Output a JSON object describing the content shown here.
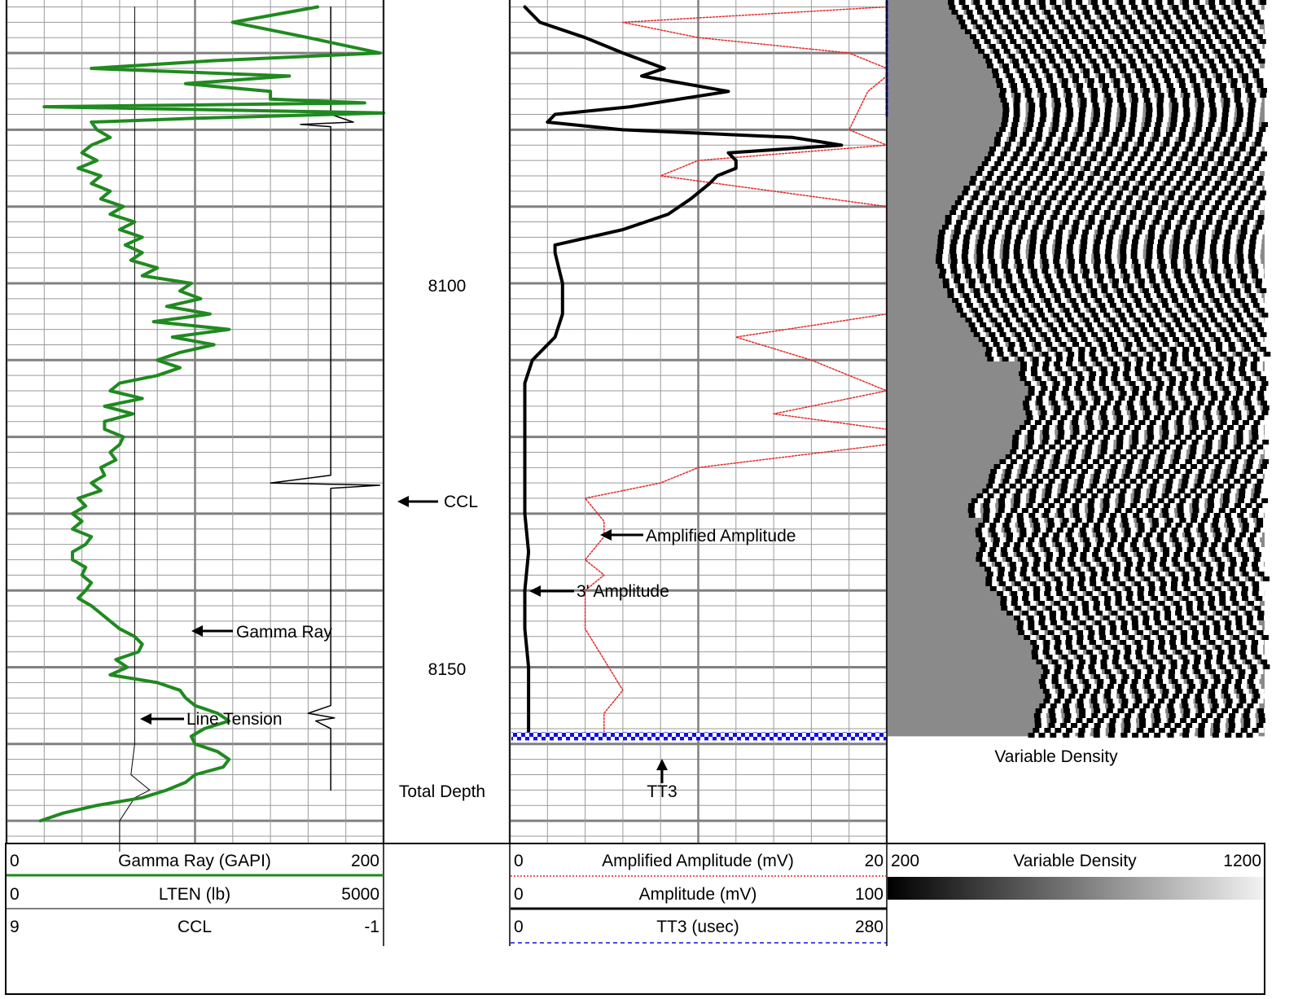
{
  "chart_data": {
    "type": "line",
    "depth_labels": [
      {
        "depth": 8100,
        "label": "8100"
      },
      {
        "depth": 8150,
        "label": "8150"
      },
      {
        "depth": 8165.8,
        "label": "Total Depth"
      }
    ],
    "depth_axis": {
      "min": 8064,
      "max": 8174,
      "unit": "ft",
      "major_every": 10,
      "minor_every": 2
    },
    "annotations": {
      "ccl": "CCL",
      "gamma_ray": "Gamma Ray",
      "line_tension": "Line Tension",
      "amplified_amplitude": "Amplified Amplitude",
      "amplitude_3ft": "3' Amplitude",
      "tt3": "TT3",
      "variable_density": "Variable Density"
    },
    "tracks": [
      {
        "name": "track1",
        "curves": [
          {
            "key": "gamma_ray",
            "label": "Gamma Ray (GAPI)",
            "min": "0",
            "max": "200",
            "color": "#1f8a1f",
            "points": [
              [
                8064,
                165
              ],
              [
                8066,
                120
              ],
              [
                8068,
                160
              ],
              [
                8070,
                198
              ],
              [
                8071,
                110
              ],
              [
                8072,
                45
              ],
              [
                8073,
                150
              ],
              [
                8074,
                95
              ],
              [
                8075,
                140
              ],
              [
                8076,
                140
              ],
              [
                8076.5,
                190
              ],
              [
                8077,
                20
              ],
              [
                8077.8,
                200
              ],
              [
                8078.5,
                100
              ],
              [
                8079,
                45
              ],
              [
                8080,
                48
              ],
              [
                8081,
                55
              ],
              [
                8082,
                45
              ],
              [
                8083,
                40
              ],
              [
                8084,
                48
              ],
              [
                8085,
                38
              ],
              [
                8086,
                50
              ],
              [
                8087,
                45
              ],
              [
                8088,
                55
              ],
              [
                8089,
                50
              ],
              [
                8090,
                62
              ],
              [
                8091,
                55
              ],
              [
                8092,
                68
              ],
              [
                8093,
                60
              ],
              [
                8094,
                72
              ],
              [
                8095,
                63
              ],
              [
                8096,
                72
              ],
              [
                8097,
                66
              ],
              [
                8098,
                80
              ],
              [
                8099,
                72
              ],
              [
                8100,
                98
              ],
              [
                8101,
                92
              ],
              [
                8102,
                103
              ],
              [
                8103,
                85
              ],
              [
                8104,
                108
              ],
              [
                8105,
                78
              ],
              [
                8106,
                118
              ],
              [
                8107,
                88
              ],
              [
                8108,
                110
              ],
              [
                8109,
                92
              ],
              [
                8110,
                80
              ],
              [
                8111,
                92
              ],
              [
                8112,
                80
              ],
              [
                8113,
                60
              ],
              [
                8114,
                55
              ],
              [
                8115,
                72
              ],
              [
                8116,
                52
              ],
              [
                8117,
                67
              ],
              [
                8118,
                52
              ],
              [
                8119,
                52
              ],
              [
                8120,
                62
              ],
              [
                8121,
                60
              ],
              [
                8122,
                55
              ],
              [
                8123,
                58
              ],
              [
                8124,
                50
              ],
              [
                8125,
                52
              ],
              [
                8126,
                45
              ],
              [
                8127,
                50
              ],
              [
                8128,
                38
              ],
              [
                8129,
                42
              ],
              [
                8130,
                35
              ],
              [
                8131,
                40
              ],
              [
                8132,
                35
              ],
              [
                8133,
                45
              ],
              [
                8134,
                42
              ],
              [
                8135,
                35
              ],
              [
                8136,
                35
              ],
              [
                8137,
                42
              ],
              [
                8138,
                40
              ],
              [
                8139,
                45
              ],
              [
                8140,
                42
              ],
              [
                8141,
                38
              ],
              [
                8142,
                45
              ],
              [
                8143,
                50
              ],
              [
                8144,
                55
              ],
              [
                8145,
                60
              ],
              [
                8146,
                68
              ],
              [
                8147,
                72
              ],
              [
                8148,
                70
              ],
              [
                8149,
                58
              ],
              [
                8150,
                64
              ],
              [
                8151,
                55
              ],
              [
                8152,
                80
              ],
              [
                8153,
                92
              ],
              [
                8154,
                95
              ],
              [
                8155,
                100
              ],
              [
                8156,
                112
              ],
              [
                8157,
                118
              ],
              [
                8158,
                105
              ],
              [
                8159,
                98
              ],
              [
                8160,
                100
              ],
              [
                8161,
                112
              ],
              [
                8162,
                118
              ],
              [
                8163,
                115
              ],
              [
                8164,
                100
              ],
              [
                8165,
                95
              ],
              [
                8166,
                85
              ],
              [
                8167,
                72
              ],
              [
                8168,
                48
              ],
              [
                8169,
                30
              ],
              [
                8170,
                18
              ]
            ]
          },
          {
            "key": "lten",
            "label": "LTEN (lb)",
            "min": "0",
            "max": "5000",
            "color": "#000000",
            "points": [
              [
                8064,
                1700
              ],
              [
                8080,
                1700
              ],
              [
                8100,
                1700
              ],
              [
                8120,
                1700
              ],
              [
                8140,
                1700
              ],
              [
                8160,
                1700
              ],
              [
                8164,
                1650
              ],
              [
                8166,
                1900
              ],
              [
                8167,
                1700
              ],
              [
                8170,
                1500
              ],
              [
                8174,
                1500
              ]
            ]
          },
          {
            "key": "ccl",
            "label": "CCL",
            "min": "9",
            "max": "-1",
            "color": "#000000",
            "points": [
              [
                8064,
                0.4
              ],
              [
                8078,
                0.4
              ],
              [
                8079,
                -0.2
              ],
              [
                8079.3,
                1.2
              ],
              [
                8079.6,
                0.4
              ],
              [
                8080,
                0.4
              ],
              [
                8125,
                0.4
              ],
              [
                8126,
                2.0
              ],
              [
                8126.3,
                -0.9
              ],
              [
                8126.7,
                0.4
              ],
              [
                8155,
                0.4
              ],
              [
                8156,
                1.0
              ],
              [
                8156.6,
                0.3
              ],
              [
                8157,
                0.8
              ],
              [
                8158,
                0.4
              ],
              [
                8166,
                0.4
              ]
            ]
          }
        ]
      },
      {
        "name": "track2",
        "curves": [
          {
            "key": "amplified_amplitude",
            "label": "Amplified Amplitude (mV)",
            "min": "0",
            "max": "20",
            "color": "#e32727",
            "points": [
              [
                8064,
                20
              ],
              [
                8066,
                6
              ],
              [
                8068,
                10
              ],
              [
                8070,
                18
              ],
              [
                8072,
                20
              ],
              [
                8073,
                20
              ],
              [
                8075,
                19
              ],
              [
                8080,
                18
              ],
              [
                8082,
                20
              ],
              [
                8084,
                10
              ],
              [
                8086,
                8
              ],
              [
                8090,
                20
              ],
              [
                8104,
                20
              ],
              [
                8107,
                12
              ],
              [
                8110,
                16
              ],
              [
                8114,
                20
              ],
              [
                8117,
                14
              ],
              [
                8119,
                20
              ],
              [
                8121,
                20
              ],
              [
                8124,
                10
              ],
              [
                8126,
                8
              ],
              [
                8128,
                4
              ],
              [
                8131,
                5
              ],
              [
                8133,
                5
              ],
              [
                8136,
                4
              ],
              [
                8138,
                5
              ],
              [
                8140,
                4
              ],
              [
                8145,
                4
              ],
              [
                8149,
                5
              ],
              [
                8153,
                6
              ],
              [
                8156,
                5
              ],
              [
                8159,
                5
              ]
            ]
          },
          {
            "key": "amplitude_3ft",
            "label": "Amplitude (mV)",
            "min": "0",
            "max": "100",
            "color": "#000000",
            "points": [
              [
                8064,
                4
              ],
              [
                8066,
                8
              ],
              [
                8068,
                20
              ],
              [
                8070,
                30
              ],
              [
                8072,
                41
              ],
              [
                8073,
                35
              ],
              [
                8075,
                58
              ],
              [
                8077,
                32
              ],
              [
                8078,
                12
              ],
              [
                8079,
                10
              ],
              [
                8080,
                30
              ],
              [
                8081,
                75
              ],
              [
                8082,
                88
              ],
              [
                8083,
                58
              ],
              [
                8084,
                60
              ],
              [
                8085,
                60
              ],
              [
                8086,
                55
              ],
              [
                8087,
                53
              ],
              [
                8089,
                48
              ],
              [
                8091,
                42
              ],
              [
                8093,
                30
              ],
              [
                8095,
                12
              ],
              [
                8096,
                12
              ],
              [
                8100,
                14
              ],
              [
                8104,
                14
              ],
              [
                8107,
                12
              ],
              [
                8110,
                6
              ],
              [
                8113,
                4
              ],
              [
                8117,
                4
              ],
              [
                8121,
                4
              ],
              [
                8125,
                4
              ],
              [
                8130,
                4
              ],
              [
                8135,
                5
              ],
              [
                8140,
                4
              ],
              [
                8145,
                4
              ],
              [
                8150,
                5
              ],
              [
                8155,
                5
              ],
              [
                8159,
                5
              ]
            ]
          },
          {
            "key": "tt3",
            "label": "TT3 (usec)",
            "min": "0",
            "max": "280",
            "color": "#1010e0",
            "points": [
              [
                8059,
                280
              ],
              [
                8078.2,
                280
              ],
              [
                8159,
                280
              ]
            ]
          }
        ]
      },
      {
        "name": "track3",
        "curves": [
          {
            "key": "vdl",
            "label": "Variable Density",
            "min": "200",
            "max": "1200",
            "type": "heatmap"
          }
        ]
      }
    ]
  },
  "header": {
    "track1": [
      {
        "min": "0",
        "label": "Gamma Ray (GAPI)",
        "max": "200",
        "line_color": "#1f8a1f",
        "line_style": "solid-thick"
      },
      {
        "min": "0",
        "label": "LTEN (lb)",
        "max": "5000",
        "line_color": "#000000",
        "line_style": "solid-thin"
      },
      {
        "min": "9",
        "label": "CCL",
        "max": "-1",
        "line_color": "#000000",
        "line_style": "solid-thin"
      }
    ],
    "track2": [
      {
        "min": "0",
        "label": "Amplified Amplitude (mV)",
        "max": "20",
        "line_color": "#e32727",
        "line_style": "dotted"
      },
      {
        "min": "0",
        "label": "Amplitude (mV)",
        "max": "100",
        "line_color": "#000000",
        "line_style": "solid-thick"
      },
      {
        "min": "0",
        "label": "TT3 (usec)",
        "max": "280",
        "line_color": "#1010e0",
        "line_style": "dashed"
      }
    ],
    "track3": [
      {
        "min": "200",
        "label": "Variable Density",
        "max": "1200"
      }
    ]
  },
  "colors": {
    "grid_major": "#808080",
    "grid_minor": "#9a9a9a",
    "gamma_ray": "#1f8a1f",
    "amplified_amplitude": "#e32727",
    "tt3": "#1010e0",
    "vdl_background": "#8a8a8a"
  }
}
